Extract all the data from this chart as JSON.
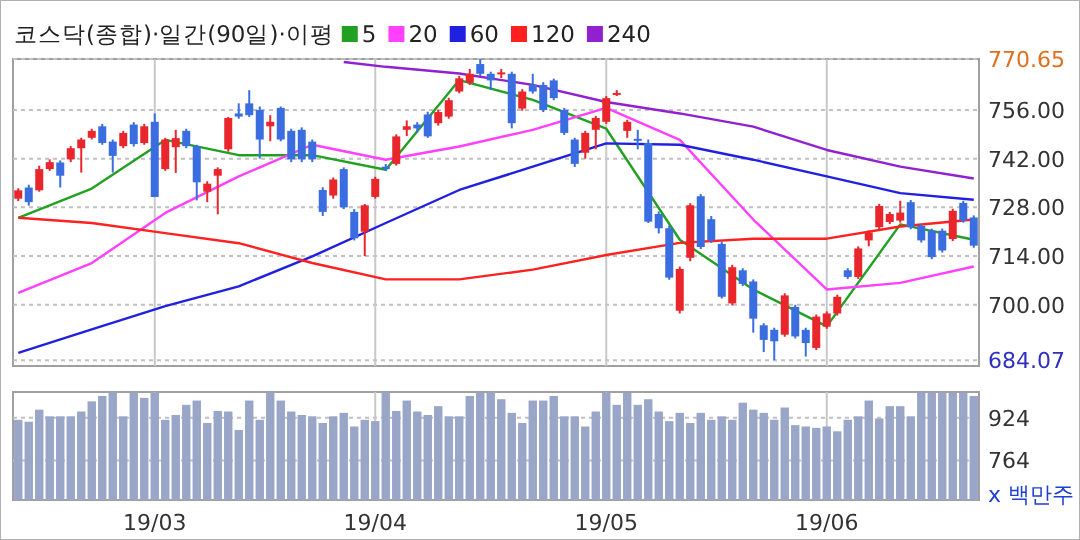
{
  "chart_data": [
    {
      "type": "candlestick",
      "title": "코스닥(종합)·일간(90일)·이평",
      "categories": [
        null,
        null,
        null,
        null,
        null,
        null,
        null,
        null,
        null,
        null,
        null,
        null,
        null,
        null,
        null,
        null,
        null,
        null,
        null,
        null,
        null,
        null,
        null,
        null,
        null,
        null,
        null,
        null,
        null,
        null,
        null,
        null,
        null,
        null,
        null,
        null,
        null,
        null,
        null,
        null,
        null,
        null,
        null,
        null,
        null,
        null,
        null,
        null,
        null,
        null,
        null,
        null,
        null,
        null,
        null,
        null,
        null,
        null,
        null,
        null,
        null,
        null,
        null,
        null,
        null,
        null,
        null,
        null,
        null,
        null,
        null,
        null,
        null,
        null,
        null,
        null,
        null,
        null,
        null,
        null,
        null,
        null,
        null,
        null,
        null,
        null,
        null,
        null,
        null,
        null,
        null,
        null
      ],
      "ohlc": [
        [
          730.5,
          733.5,
          729.8,
          732.9
        ],
        [
          733.7,
          734.5,
          728.5,
          729.5
        ],
        [
          732.9,
          740,
          732.5,
          739
        ],
        [
          739,
          741.8,
          738.5,
          741
        ],
        [
          740.9,
          741.5,
          733.7,
          737.1
        ],
        [
          741.8,
          745.6,
          741,
          745
        ],
        [
          745,
          748,
          738,
          747.5
        ],
        [
          748,
          750.6,
          747.5,
          750
        ],
        [
          751.3,
          752,
          746,
          746.5
        ],
        [
          746.9,
          747.5,
          738,
          742.8
        ],
        [
          745.6,
          750,
          745,
          749.4
        ],
        [
          751.8,
          752.5,
          745.5,
          746.2
        ],
        [
          746.5,
          752,
          746,
          751.3
        ],
        [
          752.6,
          755,
          731,
          731
        ],
        [
          739,
          748,
          738.5,
          747.5
        ],
        [
          745.3,
          750.3,
          737.9,
          747.9
        ],
        [
          750,
          750.6,
          745,
          745.6
        ],
        [
          745.6,
          746,
          730,
          735.2
        ],
        [
          732.5,
          735.5,
          729.5,
          734.8
        ],
        [
          737.1,
          739.5,
          726,
          739
        ],
        [
          744.7,
          754,
          744,
          753.7
        ],
        [
          755,
          757.9,
          753.5,
          754.1
        ],
        [
          757.9,
          761.7,
          754,
          754.5
        ],
        [
          756,
          757,
          742,
          747.5
        ],
        [
          751.3,
          754.5,
          747,
          752.6
        ],
        [
          756.6,
          757,
          747,
          747.5
        ],
        [
          750,
          750.6,
          741,
          741.8
        ],
        [
          750.3,
          751,
          741,
          741.8
        ],
        [
          746.9,
          747.5,
          741,
          741.8
        ],
        [
          733,
          733.8,
          725.5,
          726.7
        ],
        [
          731.4,
          736.6,
          730.5,
          736
        ],
        [
          739,
          739.5,
          727.5,
          728
        ],
        [
          726.7,
          727.5,
          718.5,
          719.1
        ],
        [
          721,
          729,
          714,
          728.6
        ],
        [
          731,
          736.8,
          730.5,
          736.2
        ],
        [
          739.7,
          740.5,
          738.5,
          739
        ],
        [
          740.5,
          749,
          740,
          748.4
        ],
        [
          750.3,
          753,
          748.5,
          751.3
        ],
        [
          751.8,
          752.5,
          749.5,
          750.7
        ],
        [
          754.7,
          755.5,
          748,
          748.4
        ],
        [
          752.2,
          756,
          751.5,
          755.4
        ],
        [
          754.1,
          759.5,
          753.5,
          758.8
        ],
        [
          761.3,
          765.8,
          760.8,
          765.1
        ],
        [
          763.8,
          767.8,
          763.2,
          766.4
        ],
        [
          769.2,
          770.65,
          765.8,
          766.4
        ],
        [
          766.4,
          767,
          761.7,
          764.5
        ],
        [
          766.4,
          767.8,
          765.2,
          766.8
        ],
        [
          766.4,
          767,
          750.7,
          752.2
        ],
        [
          756.4,
          762,
          755.8,
          761.3
        ],
        [
          763.2,
          766.4,
          760.7,
          761.3
        ],
        [
          763.2,
          764,
          755.4,
          756
        ],
        [
          764.5,
          765,
          758.8,
          759.4
        ],
        [
          756,
          756.6,
          748.8,
          749.4
        ],
        [
          747.5,
          748,
          739.6,
          740.5
        ],
        [
          743.7,
          750,
          742,
          749.4
        ],
        [
          750.3,
          754.3,
          744.7,
          753.7
        ],
        [
          752.6,
          760,
          752,
          759.4
        ],
        [
          760.5,
          761.7,
          760,
          760.9
        ],
        [
          750,
          753.2,
          748,
          752.6
        ],
        [
          747.7,
          750.3,
          744.7,
          747.3
        ],
        [
          746.5,
          747.5,
          723.5,
          723.9
        ],
        [
          726.1,
          726.8,
          720.5,
          722
        ],
        [
          722,
          722.8,
          707.2,
          707.8
        ],
        [
          698.3,
          711,
          697.5,
          710.3
        ],
        [
          713.5,
          729.2,
          712.5,
          728.6
        ],
        [
          731.2,
          731.8,
          716,
          716.6
        ],
        [
          724.6,
          725.5,
          717.8,
          718.5
        ],
        [
          717.5,
          718.2,
          701.8,
          702.3
        ],
        [
          700.4,
          711.5,
          699.8,
          710.8
        ],
        [
          709.9,
          710.5,
          705.4,
          706
        ],
        [
          706.7,
          707.3,
          692,
          696
        ],
        [
          694.1,
          694.7,
          686.4,
          689.9
        ],
        [
          692.8,
          693.4,
          684.07,
          689.5
        ],
        [
          691.4,
          703.3,
          690.8,
          702.7
        ],
        [
          699.4,
          700,
          690.3,
          690.9
        ],
        [
          692.8,
          693.4,
          685.1,
          689
        ],
        [
          687.6,
          697.2,
          687,
          696.6
        ],
        [
          693.7,
          698.1,
          693.1,
          697.5
        ],
        [
          697.5,
          702.9,
          696.9,
          702.3
        ],
        [
          709.9,
          710.5,
          707.4,
          708
        ],
        [
          708,
          716.8,
          707.4,
          716.2
        ],
        [
          718.5,
          721.4,
          716.8,
          720.8
        ],
        [
          722.3,
          729,
          721.7,
          728.4
        ],
        [
          723.8,
          726.7,
          723.2,
          726.1
        ],
        [
          724.2,
          729.9,
          723.6,
          726.5
        ],
        [
          729.5,
          730.1,
          721.7,
          722.3
        ],
        [
          722.7,
          723.3,
          717.9,
          718.5
        ],
        [
          721.3,
          721.9,
          713.1,
          713.7
        ],
        [
          721.3,
          721.9,
          715,
          715.6
        ],
        [
          718.9,
          727.6,
          718.3,
          727
        ],
        [
          729.3,
          729.9,
          723.6,
          724.2
        ],
        [
          725.1,
          725.7,
          716.4,
          717
        ]
      ],
      "colors": [
        "#e8262b",
        "#3a6ee0",
        "#e8262b",
        "#e8262b",
        "#3a6ee0",
        "#e8262b",
        "#e8262b",
        "#e8262b",
        "#3a6ee0",
        "#3a6ee0",
        "#e8262b",
        "#3a6ee0",
        "#e8262b",
        "#3a6ee0",
        "#e8262b",
        "#e8262b",
        "#3a6ee0",
        "#3a6ee0",
        "#e8262b",
        "#e8262b",
        "#e8262b",
        "#3a6ee0",
        "#3a6ee0",
        "#3a6ee0",
        "#e8262b",
        "#3a6ee0",
        "#3a6ee0",
        "#3a6ee0",
        "#3a6ee0",
        "#3a6ee0",
        "#e8262b",
        "#3a6ee0",
        "#3a6ee0",
        "#e8262b",
        "#e8262b",
        "#3a6ee0",
        "#e8262b",
        "#e8262b",
        "#3a6ee0",
        "#3a6ee0",
        "#e8262b",
        "#e8262b",
        "#e8262b",
        "#e8262b",
        "#3a6ee0",
        "#3a6ee0",
        "#e8262b",
        "#3a6ee0",
        "#e8262b",
        "#3a6ee0",
        "#3a6ee0",
        "#3a6ee0",
        "#3a6ee0",
        "#3a6ee0",
        "#e8262b",
        "#e8262b",
        "#e8262b",
        "#e8262b",
        "#e8262b",
        "#3a6ee0",
        "#3a6ee0",
        "#3a6ee0",
        "#3a6ee0",
        "#e8262b",
        "#e8262b",
        "#3a6ee0",
        "#3a6ee0",
        "#3a6ee0",
        "#e8262b",
        "#3a6ee0",
        "#3a6ee0",
        "#3a6ee0",
        "#3a6ee0",
        "#e8262b",
        "#3a6ee0",
        "#3a6ee0",
        "#e8262b",
        "#e8262b",
        "#e8262b",
        "#3a6ee0",
        "#e8262b",
        "#e8262b",
        "#e8262b",
        "#e8262b",
        "#e8262b",
        "#3a6ee0",
        "#3a6ee0",
        "#3a6ee0",
        "#3a6ee0",
        "#e8262b",
        "#3a6ee0",
        "#3a6ee0"
      ],
      "series": [
        {
          "type": "line",
          "name": "5",
          "color": "#22a022",
          "values": [
            725,
            null,
            null,
            null,
            null,
            null,
            null,
            733.4,
            null,
            null,
            null,
            null,
            null,
            null,
            747.4,
            null,
            null,
            null,
            null,
            null,
            null,
            743,
            null,
            null,
            null,
            null,
            null,
            null,
            743,
            null,
            null,
            null,
            null,
            null,
            null,
            738.8,
            null,
            null,
            null,
            null,
            null,
            null,
            764.6,
            null,
            null,
            null,
            null,
            null,
            null,
            758.9,
            null,
            null,
            null,
            null,
            null,
            null,
            750.6,
            null,
            null,
            null,
            null,
            null,
            null,
            718.7,
            null,
            null,
            null,
            null,
            null,
            null,
            704.4,
            null,
            null,
            null,
            null,
            null,
            null,
            693.8,
            null,
            null,
            null,
            null,
            null,
            null,
            723.1,
            null,
            null,
            null,
            null,
            null,
            null,
            718.7
          ]
        },
        {
          "type": "line",
          "name": "20",
          "color": "#ff40ff",
          "values": [
            703.4,
            null,
            null,
            null,
            null,
            null,
            null,
            712,
            null,
            null,
            null,
            null,
            null,
            null,
            726.4,
            null,
            null,
            null,
            null,
            null,
            null,
            736.9,
            null,
            null,
            null,
            null,
            null,
            null,
            746,
            null,
            null,
            null,
            null,
            null,
            null,
            741.7,
            null,
            null,
            null,
            null,
            null,
            null,
            745.5,
            null,
            null,
            null,
            null,
            null,
            null,
            750.3,
            null,
            null,
            null,
            null,
            null,
            null,
            756.6,
            null,
            null,
            null,
            null,
            null,
            null,
            747.4,
            null,
            null,
            null,
            null,
            null,
            null,
            724.5,
            null,
            null,
            null,
            null,
            null,
            null,
            704.4,
            null,
            null,
            null,
            null,
            null,
            null,
            706.3,
            null,
            null,
            null,
            null,
            null,
            null,
            711
          ]
        },
        {
          "type": "line",
          "name": "60",
          "color": "#2020e0",
          "values": [
            686.2,
            null,
            null,
            null,
            null,
            null,
            null,
            692.9,
            null,
            null,
            null,
            null,
            null,
            null,
            699.6,
            null,
            null,
            null,
            null,
            null,
            null,
            705.3,
            null,
            null,
            null,
            null,
            null,
            null,
            713.9,
            null,
            null,
            null,
            null,
            null,
            null,
            723.5,
            null,
            null,
            null,
            null,
            null,
            null,
            733,
            null,
            null,
            null,
            null,
            null,
            null,
            739.7,
            null,
            null,
            null,
            null,
            null,
            null,
            746.4,
            null,
            null,
            null,
            null,
            null,
            null,
            746,
            null,
            null,
            null,
            null,
            null,
            null,
            741.7,
            null,
            null,
            null,
            null,
            null,
            null,
            736.9,
            null,
            null,
            null,
            null,
            null,
            null,
            732.1,
            null,
            null,
            null,
            null,
            null,
            null,
            730.2
          ]
        },
        {
          "type": "line",
          "name": "120",
          "color": "#ff2020",
          "values": [
            725,
            null,
            null,
            null,
            null,
            null,
            null,
            723.5,
            null,
            null,
            null,
            null,
            null,
            null,
            720.6,
            null,
            null,
            null,
            null,
            null,
            null,
            717.7,
            null,
            null,
            null,
            null,
            null,
            null,
            712,
            null,
            null,
            null,
            null,
            null,
            null,
            707.3,
            null,
            null,
            null,
            null,
            null,
            null,
            707.3,
            null,
            null,
            null,
            null,
            null,
            null,
            710.1,
            null,
            null,
            null,
            null,
            null,
            null,
            714.3,
            null,
            null,
            null,
            null,
            null,
            null,
            717.8,
            null,
            null,
            null,
            null,
            null,
            null,
            719,
            null,
            null,
            null,
            null,
            null,
            null,
            719,
            null,
            null,
            null,
            null,
            null,
            null,
            722.5,
            null,
            null,
            null,
            null,
            null,
            null,
            724.5
          ]
        },
        {
          "type": "line",
          "name": "240",
          "color": "#9020d0",
          "values": [
            null,
            null,
            null,
            null,
            null,
            null,
            null,
            null,
            null,
            null,
            null,
            null,
            null,
            null,
            null,
            null,
            null,
            null,
            null,
            null,
            null,
            null,
            null,
            null,
            null,
            null,
            null,
            null,
            null,
            null,
            null,
            769.8,
            null,
            null,
            null,
            768.4,
            null,
            null,
            null,
            null,
            null,
            null,
            766.5,
            null,
            null,
            null,
            null,
            null,
            null,
            763.2,
            null,
            null,
            null,
            null,
            null,
            null,
            758.3,
            null,
            null,
            null,
            null,
            null,
            null,
            755,
            null,
            null,
            null,
            null,
            null,
            null,
            751.2,
            null,
            null,
            null,
            null,
            null,
            null,
            744.5,
            null,
            null,
            null,
            null,
            null,
            null,
            739.7,
            null,
            null,
            null,
            null,
            null,
            null,
            736.3
          ]
        }
      ],
      "ylim": [
        682.4,
        770.65
      ],
      "yticks": [
        {
          "value": 684.07,
          "label": "684.07"
        },
        {
          "value": 700,
          "label": "700.00"
        },
        {
          "value": 714,
          "label": "714.00"
        },
        {
          "value": 728,
          "label": "728.00"
        },
        {
          "value": 742,
          "label": "742.00"
        },
        {
          "value": 756,
          "label": "756.00"
        },
        {
          "value": 770.65,
          "label": "770.65"
        }
      ],
      "grid": true,
      "legend": "top",
      "tick_labels": "y"
    },
    {
      "type": "bar",
      "ylabel": "x 백만주",
      "color": "#9aa6c8",
      "categories": [
        null,
        null,
        null,
        null,
        null,
        null,
        null,
        null,
        null,
        null,
        null,
        null,
        null,
        "19/03",
        null,
        null,
        null,
        null,
        null,
        null,
        null,
        null,
        null,
        null,
        null,
        null,
        null,
        null,
        null,
        null,
        null,
        null,
        null,
        null,
        "19/04",
        null,
        null,
        null,
        null,
        null,
        null,
        null,
        null,
        null,
        null,
        null,
        null,
        null,
        null,
        null,
        null,
        null,
        null,
        null,
        null,
        null,
        "19/05",
        null,
        null,
        null,
        null,
        null,
        null,
        null,
        null,
        null,
        null,
        null,
        null,
        null,
        null,
        null,
        null,
        null,
        null,
        null,
        null,
        "19/06",
        null,
        null,
        null,
        null,
        null,
        null,
        null,
        null,
        null,
        null,
        null,
        null,
        null,
        null
      ],
      "values": [
        916,
        909,
        954,
        929,
        929,
        929,
        947,
        985,
        1005,
        1018,
        929,
        1018,
        998,
        1018,
        916,
        934,
        972,
        988,
        904,
        949,
        947,
        878,
        988,
        916,
        1018,
        988,
        947,
        934,
        929,
        904,
        929,
        942,
        891,
        916,
        911,
        1018,
        949,
        988,
        947,
        934,
        967,
        929,
        929,
        1005,
        1018,
        1018,
        993,
        942,
        904,
        988,
        988,
        1005,
        929,
        929,
        891,
        947,
        1018,
        972,
        1018,
        972,
        993,
        947,
        911,
        942,
        904,
        942,
        916,
        929,
        916,
        980,
        954,
        942,
        916,
        962,
        896,
        891,
        886,
        891,
        873,
        916,
        929,
        988,
        921,
        967,
        967,
        929,
        1018,
        1018,
        1018,
        1018,
        1018,
        1005
      ],
      "ylim": [
        616,
        1020
      ],
      "yticks": [
        764,
        924
      ],
      "grid": true
    }
  ]
}
